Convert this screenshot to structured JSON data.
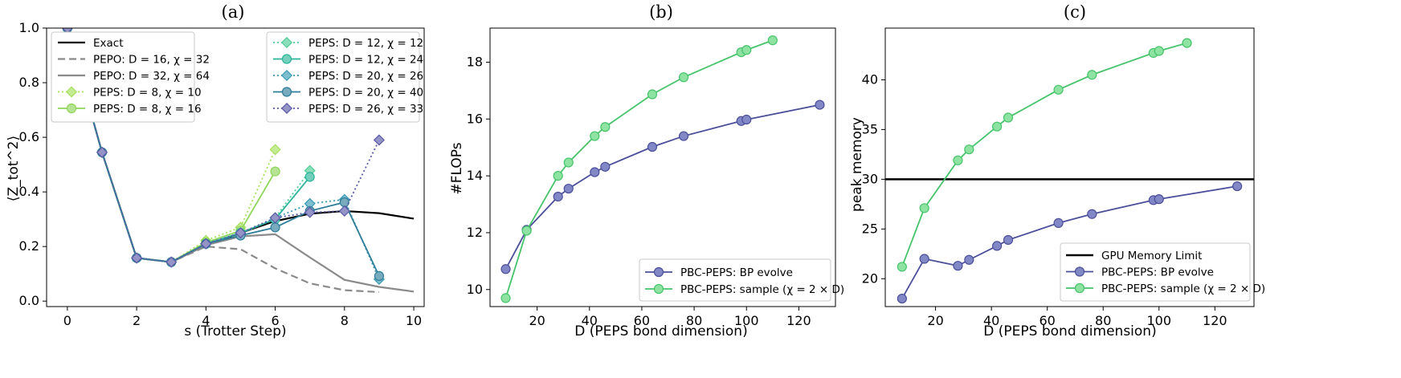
{
  "chart_data": [
    {
      "type": "line",
      "title": "(a)",
      "xlabel": "s (Trotter Step)",
      "ylabel": "⟨Z_tot^2⟩",
      "xlim": [
        -0.6,
        10.3
      ],
      "ylim": [
        -0.02,
        1.0
      ],
      "xticks": [
        0,
        2,
        4,
        6,
        8,
        10
      ],
      "xtick_labels": [
        "0",
        "2",
        "4",
        "6",
        "8",
        "10"
      ],
      "yticks": [
        0.0,
        0.2,
        0.4,
        0.6,
        0.8,
        1.0
      ],
      "ytick_labels": [
        "0.0",
        "0.2",
        "0.4",
        "0.6",
        "0.8",
        "1.0"
      ],
      "legend_left": [
        "Exact",
        "PEPO: D = 16, χ = 32",
        "PEPO: D = 32, χ = 64",
        "PEPS: D = 8, χ = 10",
        "PEPS: D = 8, χ = 16"
      ],
      "legend_right": [
        "PEPS: D = 12, χ = 12",
        "PEPS: D = 12, χ = 24",
        "PEPS: D = 20, χ = 26",
        "PEPS: D = 20, χ = 40",
        "PEPS: D = 26, χ = 33"
      ],
      "series": [
        {
          "name": "Exact",
          "color": "#000000",
          "style": "solid",
          "marker": "none",
          "x": [
            0,
            1,
            2,
            3,
            4,
            5,
            6,
            7,
            8,
            9,
            10
          ],
          "y": [
            1.0,
            0.545,
            0.158,
            0.143,
            0.205,
            0.25,
            0.293,
            0.32,
            0.33,
            0.322,
            0.302
          ]
        },
        {
          "name": "PEPO: D = 16, χ = 32",
          "color": "#8a8a8a",
          "style": "dashed",
          "marker": "none",
          "x": [
            0,
            1,
            2,
            3,
            4,
            5,
            6,
            7,
            8,
            9
          ],
          "y": [
            1.0,
            0.545,
            0.158,
            0.143,
            0.2,
            0.19,
            0.12,
            0.065,
            0.04,
            0.033
          ]
        },
        {
          "name": "PEPO: D = 32, χ = 64",
          "color": "#8a8a8a",
          "style": "solid",
          "marker": "none",
          "x": [
            0,
            1,
            2,
            3,
            4,
            5,
            6,
            7,
            8,
            9,
            10
          ],
          "y": [
            1.0,
            0.545,
            0.158,
            0.143,
            0.205,
            0.237,
            0.245,
            0.16,
            0.078,
            0.052,
            0.035
          ]
        },
        {
          "name": "PEPS: D = 8, χ = 10",
          "color": "#a6e05a",
          "style": "dotted",
          "marker": "diamond",
          "x": [
            0,
            1,
            2,
            3,
            4,
            5,
            6
          ],
          "y": [
            1.0,
            0.545,
            0.158,
            0.143,
            0.222,
            0.27,
            0.555
          ]
        },
        {
          "name": "PEPS: D = 8, χ = 16",
          "color": "#8ed65a",
          "style": "solid",
          "marker": "circle",
          "x": [
            0,
            1,
            2,
            3,
            4,
            5,
            6
          ],
          "y": [
            1.0,
            0.545,
            0.158,
            0.143,
            0.215,
            0.258,
            0.475
          ]
        },
        {
          "name": "PEPS: D = 12, χ = 12",
          "color": "#4fcc96",
          "style": "dotted",
          "marker": "diamond",
          "x": [
            0,
            1,
            2,
            3,
            4,
            5,
            6,
            7
          ],
          "y": [
            1.0,
            0.545,
            0.158,
            0.143,
            0.21,
            0.25,
            0.305,
            0.478
          ]
        },
        {
          "name": "PEPS: D = 12, χ = 24",
          "color": "#2ab59a",
          "style": "solid",
          "marker": "circle",
          "x": [
            0,
            1,
            2,
            3,
            4,
            5,
            6,
            7
          ],
          "y": [
            1.0,
            0.545,
            0.158,
            0.143,
            0.21,
            0.25,
            0.3,
            0.455
          ]
        },
        {
          "name": "PEPS: D = 20, χ = 26",
          "color": "#3a9bb5",
          "style": "dotted",
          "marker": "diamond",
          "x": [
            0,
            1,
            2,
            3,
            4,
            5,
            6,
            7,
            8,
            9
          ],
          "y": [
            1.0,
            0.545,
            0.158,
            0.143,
            0.21,
            0.245,
            0.305,
            0.357,
            0.372,
            0.08
          ]
        },
        {
          "name": "PEPS: D = 20, χ = 40",
          "color": "#2d7d99",
          "style": "solid",
          "marker": "circle",
          "x": [
            0,
            1,
            2,
            3,
            4,
            5,
            6,
            7,
            8,
            9
          ],
          "y": [
            1.0,
            0.545,
            0.158,
            0.143,
            0.21,
            0.24,
            0.27,
            0.33,
            0.362,
            0.092
          ]
        },
        {
          "name": "PEPS: D = 26, χ = 33",
          "color": "#5b5aa8",
          "style": "dotted",
          "marker": "diamond",
          "x": [
            0,
            1,
            2,
            3,
            4,
            5,
            6,
            7,
            8,
            9
          ],
          "y": [
            1.0,
            0.545,
            0.158,
            0.143,
            0.21,
            0.25,
            0.305,
            0.325,
            0.33,
            0.59
          ]
        }
      ]
    },
    {
      "type": "line",
      "title": "(b)",
      "xlabel": "D (PEPS bond dimension)",
      "ylabel": "#FLOPs",
      "xlim": [
        2,
        134
      ],
      "ylim": [
        9.4,
        19.2
      ],
      "xticks": [
        20,
        40,
        60,
        80,
        100,
        120
      ],
      "xtick_labels": [
        "20",
        "40",
        "60",
        "80",
        "100",
        "120"
      ],
      "yticks": [
        10,
        12,
        14,
        16,
        18
      ],
      "ytick_labels": [
        "10",
        "12",
        "14",
        "16",
        "18"
      ],
      "legend_entries": [
        "PBC-PEPS: BP evolve",
        "PBC-PEPS: sample (χ = 2 × D)"
      ],
      "series": [
        {
          "name": "PBC-PEPS: BP evolve",
          "color": "#4b4f9a",
          "fill": "#8287c6",
          "marker": "circle",
          "x": [
            8,
            16,
            28,
            32,
            42,
            46,
            64,
            76,
            98,
            100,
            128
          ],
          "y": [
            10.72,
            12.1,
            13.27,
            13.55,
            14.13,
            14.32,
            15.02,
            15.4,
            15.93,
            15.98,
            16.5
          ]
        },
        {
          "name": "PBC-PEPS: sample (χ = 2 × D)",
          "color": "#45c46a",
          "fill": "#8ee2a2",
          "marker": "circle",
          "x": [
            8,
            16,
            28,
            32,
            42,
            46,
            64,
            76,
            98,
            100,
            110
          ],
          "y": [
            9.7,
            12.07,
            14.0,
            14.47,
            15.4,
            15.72,
            16.87,
            17.47,
            18.35,
            18.43,
            18.77
          ]
        }
      ]
    },
    {
      "type": "line",
      "title": "(c)",
      "xlabel": "D (PEPS bond dimension)",
      "ylabel": "peak memory",
      "xlim": [
        2,
        134
      ],
      "ylim": [
        17.2,
        45.2
      ],
      "xticks": [
        20,
        40,
        60,
        80,
        100,
        120
      ],
      "xtick_labels": [
        "20",
        "40",
        "60",
        "80",
        "100",
        "120"
      ],
      "yticks": [
        20,
        25,
        30,
        35,
        40
      ],
      "ytick_labels": [
        "20",
        "25",
        "30",
        "35",
        "40"
      ],
      "hline": {
        "name": "GPU Memory Limit",
        "y": 30,
        "color": "#000000"
      },
      "legend_entries": [
        "GPU Memory Limit",
        "PBC-PEPS: BP evolve",
        "PBC-PEPS: sample (χ = 2 × D)"
      ],
      "series": [
        {
          "name": "PBC-PEPS: BP evolve",
          "color": "#4b4f9a",
          "fill": "#8287c6",
          "marker": "circle",
          "x": [
            8,
            16,
            28,
            32,
            42,
            46,
            64,
            76,
            98,
            100,
            128
          ],
          "y": [
            18.0,
            22.0,
            21.3,
            21.9,
            23.3,
            23.9,
            25.6,
            26.5,
            27.9,
            28.0,
            29.3
          ]
        },
        {
          "name": "PBC-PEPS: sample (χ = 2 × D)",
          "color": "#45c46a",
          "fill": "#8ee2a2",
          "marker": "circle",
          "x": [
            8,
            16,
            28,
            32,
            42,
            46,
            64,
            76,
            98,
            100,
            110
          ],
          "y": [
            21.2,
            27.1,
            31.9,
            33.0,
            35.3,
            36.2,
            39.0,
            40.5,
            42.7,
            42.9,
            43.7
          ]
        }
      ]
    }
  ]
}
